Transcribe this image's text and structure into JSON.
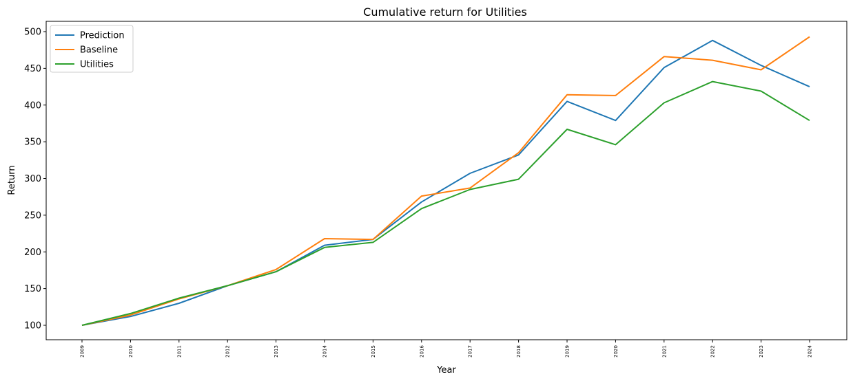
{
  "chart_data": {
    "type": "line",
    "title": "Cumulative return for Utilities",
    "xlabel": "Year",
    "ylabel": "Return",
    "categories": [
      "2009",
      "2010",
      "2011",
      "2012",
      "2013",
      "2014",
      "2015",
      "2016",
      "2017",
      "2018",
      "2019",
      "2020",
      "2021",
      "2022",
      "2023",
      "2024"
    ],
    "yticks": [
      100,
      150,
      200,
      250,
      300,
      350,
      400,
      450,
      500
    ],
    "ylim": [
      80,
      510
    ],
    "grid": false,
    "legend_position": "top-left",
    "series": [
      {
        "name": "Prediction",
        "color": "#1f77b4",
        "values": [
          100,
          112,
          130,
          154,
          173,
          209,
          217,
          268,
          307,
          332,
          405,
          379,
          451,
          488,
          454,
          425
        ]
      },
      {
        "name": "Baseline",
        "color": "#ff7f0e",
        "values": [
          100,
          114,
          136,
          154,
          176,
          218,
          217,
          276,
          287,
          335,
          414,
          413,
          466,
          461,
          448,
          493
        ]
      },
      {
        "name": "Utilities",
        "color": "#2ca02c",
        "values": [
          100,
          116,
          137,
          154,
          173,
          206,
          213,
          259,
          285,
          299,
          367,
          346,
          403,
          432,
          419,
          379
        ]
      }
    ]
  }
}
